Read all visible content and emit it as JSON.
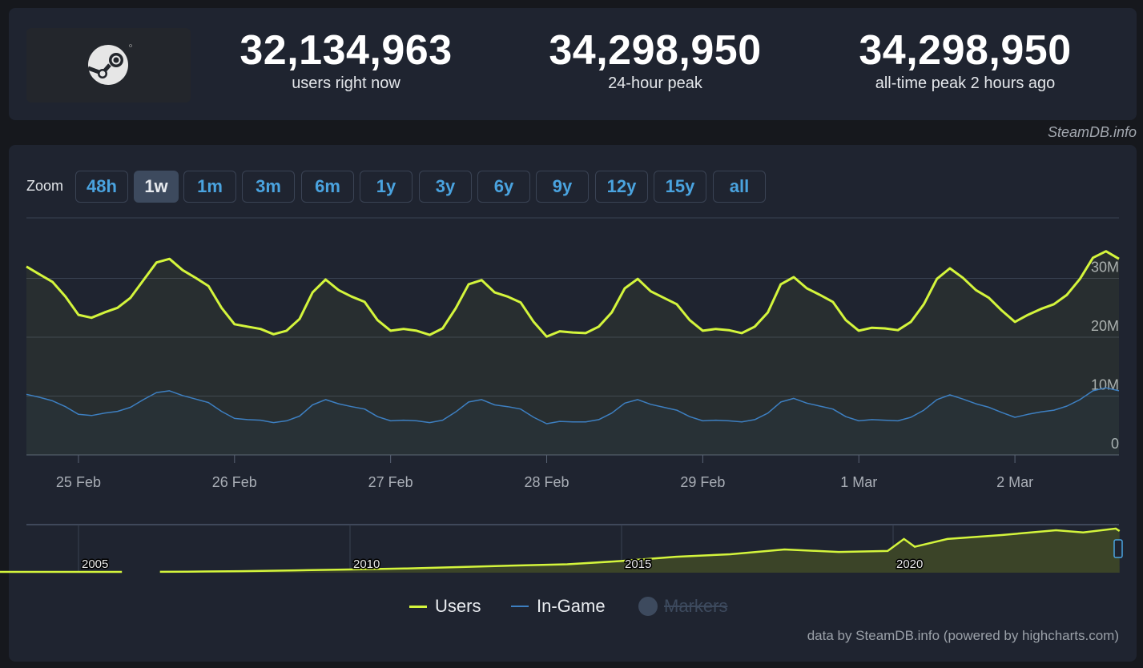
{
  "header": {
    "stats": [
      {
        "value": "32,134,963",
        "label": "users right now"
      },
      {
        "value": "34,298,950",
        "label": "24-hour peak"
      },
      {
        "value": "34,298,950",
        "label": "all-time peak 2 hours ago"
      }
    ],
    "source": "SteamDB.info",
    "logo": "steam-logo"
  },
  "zoom": {
    "label": "Zoom",
    "options": [
      "48h",
      "1w",
      "1m",
      "3m",
      "6m",
      "1y",
      "3y",
      "6y",
      "9y",
      "12y",
      "15y",
      "all"
    ],
    "selected": "1w"
  },
  "colors": {
    "users": "#d4f53c",
    "ingame": "#3d7fc1",
    "accent": "#4aa3df",
    "markers": "#3d4a5e"
  },
  "chart_data": {
    "type": "line",
    "x_start": "24 Feb 16:00",
    "x_interval_hours": 2,
    "x_ticks": [
      "25 Feb",
      "26 Feb",
      "27 Feb",
      "28 Feb",
      "29 Feb",
      "1 Mar",
      "2 Mar"
    ],
    "y_ticks": [
      "0",
      "10M",
      "20M",
      "30M"
    ],
    "y_unit": "millions",
    "ylim": [
      0,
      40
    ],
    "grid": true,
    "legend_placement": "bottom",
    "series": [
      {
        "name": "Users",
        "values": [
          32.0,
          30.7,
          29.4,
          26.9,
          23.8,
          23.3,
          24.2,
          25.0,
          26.7,
          29.7,
          32.7,
          33.3,
          31.4,
          30.1,
          28.7,
          25.0,
          22.2,
          21.8,
          21.4,
          20.5,
          21.1,
          23.1,
          27.6,
          29.8,
          28.0,
          26.9,
          26.0,
          22.9,
          21.1,
          21.4,
          21.1,
          20.4,
          21.5,
          24.9,
          29.0,
          29.7,
          27.6,
          26.9,
          25.9,
          22.6,
          20.1,
          21.0,
          20.8,
          20.7,
          21.8,
          24.2,
          28.3,
          29.9,
          27.8,
          26.7,
          25.6,
          22.9,
          21.1,
          21.4,
          21.2,
          20.7,
          21.8,
          24.2,
          29.0,
          30.2,
          28.3,
          27.2,
          26.0,
          22.9,
          21.1,
          21.6,
          21.5,
          21.2,
          22.6,
          25.6,
          29.9,
          31.7,
          30.1,
          28.0,
          26.7,
          24.5,
          22.6,
          23.8,
          24.8,
          25.6,
          27.2,
          29.9,
          33.5,
          34.6,
          33.3
        ]
      },
      {
        "name": "In-Game",
        "values": [
          10.3,
          9.8,
          9.2,
          8.2,
          6.9,
          6.7,
          7.1,
          7.4,
          8.1,
          9.4,
          10.6,
          10.9,
          10.1,
          9.5,
          8.9,
          7.4,
          6.2,
          6.0,
          5.9,
          5.5,
          5.8,
          6.6,
          8.5,
          9.4,
          8.7,
          8.2,
          7.8,
          6.5,
          5.8,
          5.9,
          5.8,
          5.5,
          5.9,
          7.3,
          9.0,
          9.4,
          8.5,
          8.2,
          7.8,
          6.4,
          5.3,
          5.7,
          5.6,
          5.6,
          6.0,
          7.1,
          8.8,
          9.4,
          8.6,
          8.1,
          7.6,
          6.5,
          5.8,
          5.9,
          5.8,
          5.6,
          6.0,
          7.1,
          9.0,
          9.6,
          8.8,
          8.3,
          7.8,
          6.5,
          5.8,
          6.0,
          5.9,
          5.8,
          6.4,
          7.6,
          9.4,
          10.2,
          9.5,
          8.7,
          8.1,
          7.2,
          6.4,
          6.9,
          7.3,
          7.6,
          8.3,
          9.4,
          10.9,
          11.4,
          10.9
        ]
      }
    ],
    "navigator": {
      "x_ticks": [
        "2005",
        "2010",
        "2015",
        "2020"
      ],
      "x_years": [
        2003.3,
        2004,
        2005,
        2005.8,
        null,
        2006.5,
        2007,
        2008,
        2009,
        2010,
        2011,
        2012,
        2013,
        2014,
        2015,
        2016,
        2017,
        2018,
        2019,
        2019.9,
        2020.2,
        2020.4,
        2021,
        2022,
        2023,
        2023.5,
        2024.1,
        2024.17
      ],
      "values": [
        0.6,
        0.6,
        0.6,
        0.6,
        null,
        0.7,
        0.8,
        1.2,
        1.8,
        2.5,
        3.2,
        4.3,
        5.5,
        6.5,
        9.0,
        12.3,
        14.2,
        17.9,
        16.0,
        16.7,
        26.0,
        20.0,
        26.0,
        29.0,
        32.7,
        31.0,
        34.0,
        32.1
      ]
    }
  },
  "legend": [
    {
      "name": "Users",
      "enabled": true
    },
    {
      "name": "In-Game",
      "enabled": true
    },
    {
      "name": "Markers",
      "enabled": false
    }
  ],
  "credits": "data by SteamDB.info (powered by highcharts.com)"
}
